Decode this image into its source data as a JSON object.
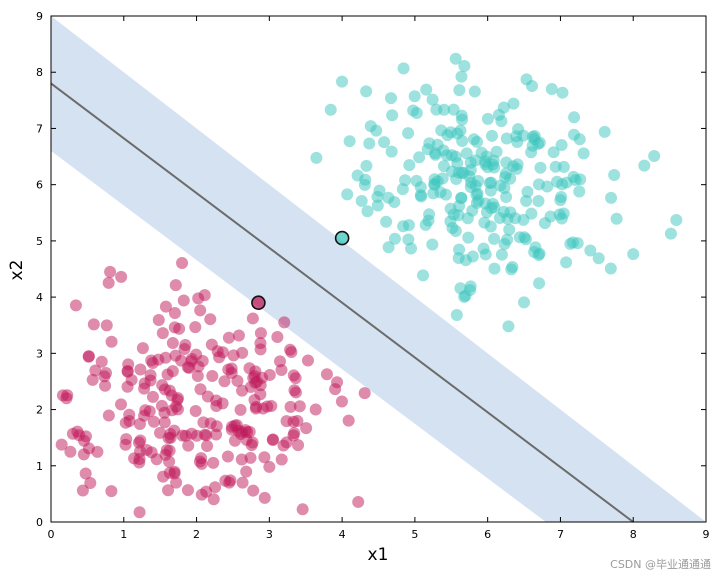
{
  "chart_data": {
    "type": "scatter",
    "xlabel": "x1",
    "ylabel": "x2",
    "xlim": [
      0,
      9
    ],
    "ylim": [
      0,
      9
    ],
    "xticks": [
      0,
      1,
      2,
      3,
      4,
      5,
      6,
      7,
      8,
      9
    ],
    "yticks": [
      0,
      1,
      2,
      3,
      4,
      5,
      6,
      7,
      8,
      9
    ],
    "grid": false,
    "legend": "none",
    "decision_boundary": {
      "x1_at_x2_0": 8.0,
      "x2_at_x1_0": 7.8
    },
    "margin_band": {
      "upper": {
        "x2_at_x1_0": 9.0,
        "x1_at_x2_0": 9.0
      },
      "lower": {
        "x2_at_x1_0": 6.6,
        "x1_at_x2_0": 6.8
      }
    },
    "support_vectors": [
      {
        "x": 2.85,
        "y": 3.9,
        "class": "red"
      },
      {
        "x": 4.0,
        "y": 5.05,
        "class": "teal"
      }
    ],
    "series": [
      {
        "class": "teal",
        "center": [
          5.9,
          6.0
        ],
        "count": 250
      },
      {
        "class": "red",
        "center": [
          1.9,
          2.1
        ],
        "count": 250
      }
    ],
    "colors": {
      "teal": "#3cc6bd",
      "red": "#c0185a",
      "band": "#d5e2f1",
      "boundary": "#6b6b6b"
    }
  },
  "watermark": "CSDN @毕业通通通"
}
